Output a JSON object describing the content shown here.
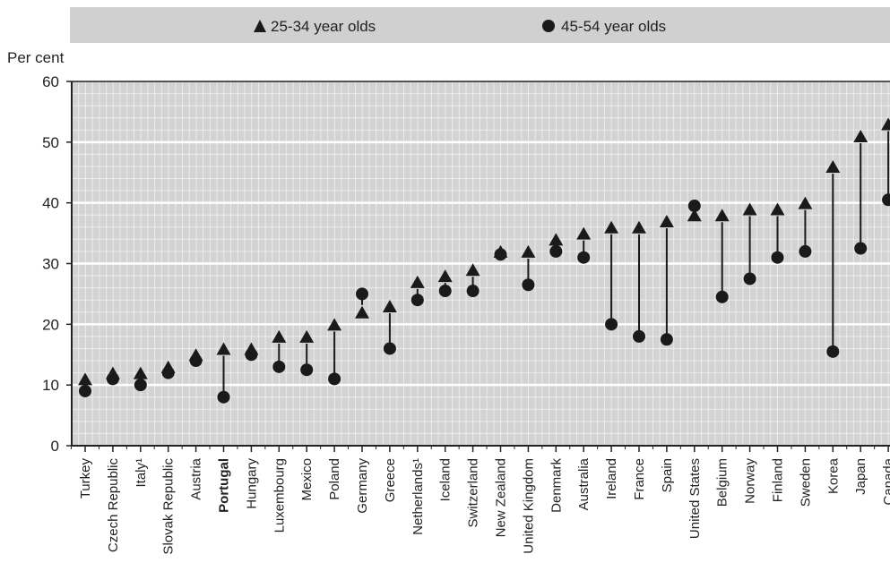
{
  "chart_data": {
    "type": "scatter",
    "ylabel": "Per cent",
    "ylim": [
      0,
      60
    ],
    "yticks": [
      0,
      10,
      20,
      30,
      40,
      50,
      60
    ],
    "grid": true,
    "legend_position": "top",
    "categories": [
      "Turkey",
      "Czech Republic",
      "Italy¹",
      "Slovak Republic",
      "Austria",
      "Portugal",
      "Hungary",
      "Luxembourg",
      "Mexico",
      "Poland",
      "Germany",
      "Greece",
      "Netherlands¹",
      "Iceland",
      "Switzerland",
      "New Zealand",
      "United Kingdom",
      "Denmark",
      "Australia",
      "Ireland",
      "France",
      "Spain",
      "United States",
      "Belgium",
      "Norway",
      "Finland",
      "Sweden",
      "Korea",
      "Japan",
      "Canada"
    ],
    "highlighted_category": "Portugal",
    "series": [
      {
        "name": "25-34 year olds",
        "marker": "triangle",
        "values": [
          11,
          12,
          12,
          13,
          15,
          16,
          16,
          18,
          18,
          20,
          22,
          23,
          27,
          28,
          29,
          32,
          32,
          34,
          35,
          36,
          36,
          37,
          38,
          38,
          39,
          39,
          40,
          46,
          51,
          53
        ]
      },
      {
        "name": "45-54 year olds",
        "marker": "circle",
        "values": [
          9,
          11,
          10,
          12,
          14,
          8,
          15,
          13,
          12.5,
          11,
          25,
          16,
          24,
          25.5,
          25.5,
          31.5,
          26.5,
          32,
          31,
          20,
          18,
          17.5,
          39.5,
          24.5,
          27.5,
          31,
          32,
          15.5,
          32.5,
          40.5
        ]
      }
    ],
    "colors": {
      "marker": "#1a1a1a",
      "grid": "#ffffff",
      "plot_background": "#d3d3d3",
      "legend_background": "#d0d0d0"
    }
  }
}
